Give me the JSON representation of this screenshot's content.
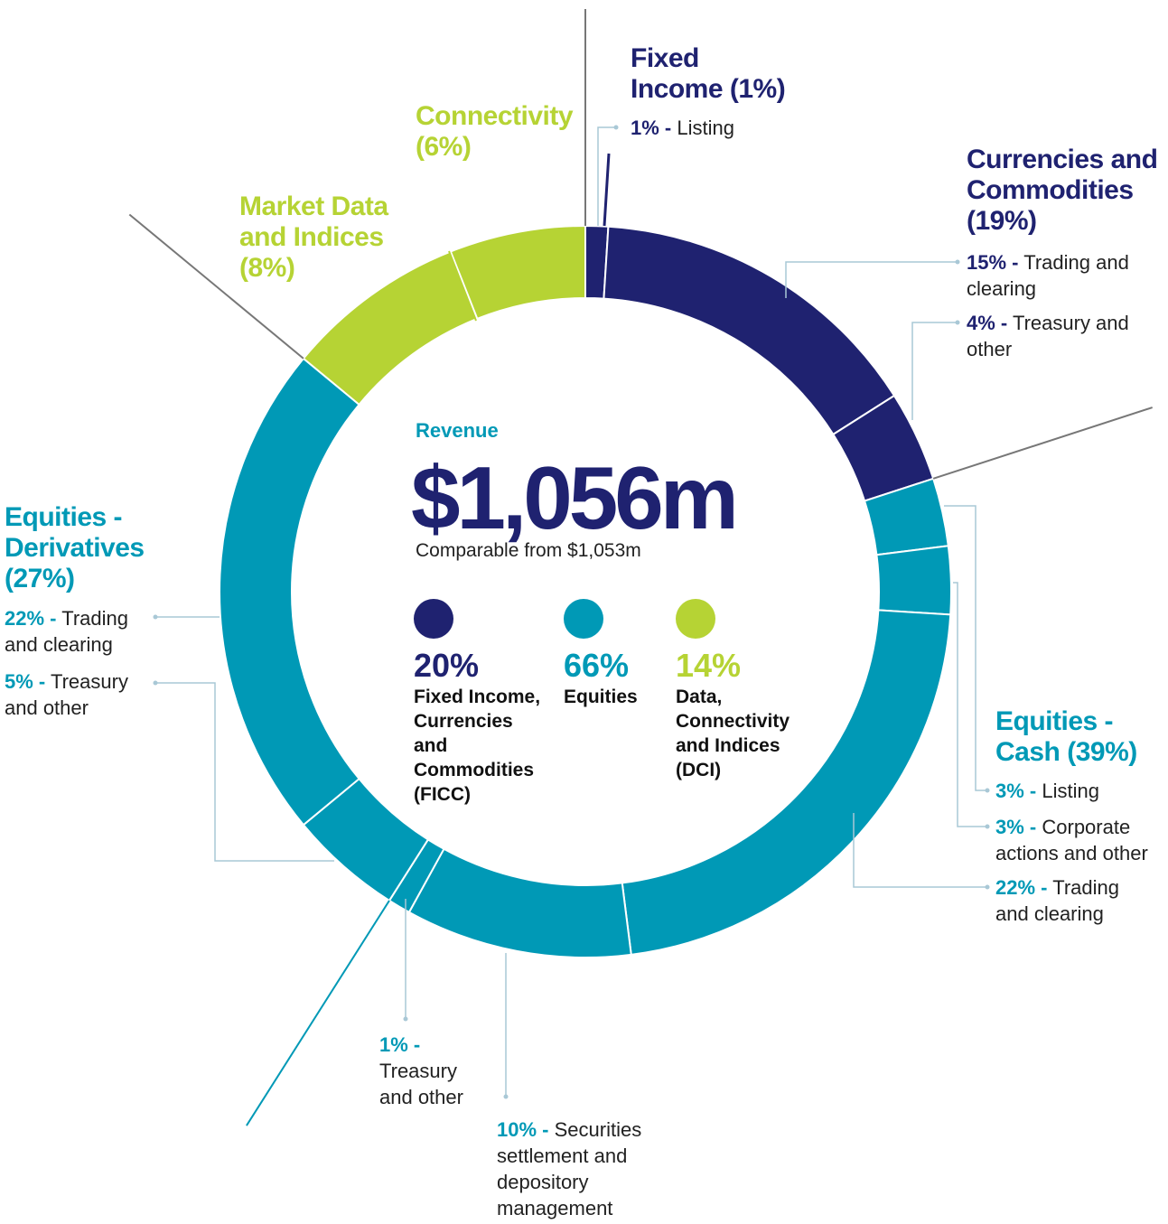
{
  "chart_data": {
    "type": "pie",
    "donut": true,
    "center_label": "Revenue",
    "center_total": "$1,056m",
    "center_note": "Comparable from $1,053m",
    "categories": [
      "Listing",
      "Trading and clearing",
      "Treasury and other",
      "Listing",
      "Corporate actions and other",
      "Trading and clearing",
      "Securities settlement and depository management",
      "Treasury and other",
      "Treasury and other",
      "Trading and clearing",
      "Market Data and Indices",
      "Connectivity"
    ],
    "values": [
      1,
      15,
      4,
      3,
      3,
      22,
      10,
      1,
      5,
      22,
      8,
      6
    ],
    "value_labels": [
      "1%",
      "15%",
      "4%",
      "3%",
      "3%",
      "22%",
      "10%",
      "1%",
      "5%",
      "22%",
      null,
      null
    ],
    "label_separator": "-",
    "colors": [
      "#1f2270",
      "#1f2270",
      "#1f2270",
      "#0099b6",
      "#0099b6",
      "#0099b6",
      "#0099b6",
      "#0099b6",
      "#0099b6",
      "#0099b6",
      "#b6d334",
      "#b6d334"
    ],
    "groups": [
      {
        "name": "Fixed Income",
        "value": 1,
        "value_label": "(1%)",
        "color": "#1f2270"
      },
      {
        "name": "Currencies and Commodities",
        "value": 19,
        "value_label": "(19%)",
        "color": "#1f2270"
      },
      {
        "name": "Equities - Cash",
        "value": 39,
        "value_label": "(39%)",
        "color": "#0099b6"
      },
      {
        "name": "Equities - Derivatives",
        "value": 27,
        "value_label": "(27%)",
        "color": "#0099b6"
      },
      {
        "name": "Market Data and Indices",
        "value": 8,
        "value_label": "(8%)",
        "color": "#b6d334"
      },
      {
        "name": "Connectivity",
        "value": 6,
        "value_label": "(6%)",
        "color": "#b6d334"
      }
    ],
    "legend": [
      {
        "name": "Fixed Income, Currencies and Commodities (FICC)",
        "value": 20,
        "value_label": "20%",
        "color": "#1f2270"
      },
      {
        "name": "Equities",
        "value": 66,
        "value_label": "66%",
        "color": "#0099b6"
      },
      {
        "name": "Data, Connectivity and Indices (DCI)",
        "value": 14,
        "value_label": "14%",
        "color": "#b6d334"
      }
    ]
  }
}
